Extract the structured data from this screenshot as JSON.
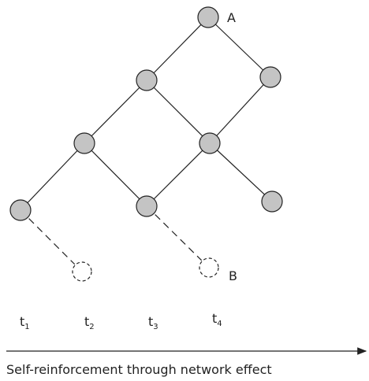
{
  "nodes": [
    {
      "label": "A"
    },
    {
      "label": "B"
    }
  ],
  "time_labels": [
    {
      "text": "t",
      "sub": "1"
    },
    {
      "text": "t",
      "sub": "2"
    },
    {
      "text": "t",
      "sub": "3"
    },
    {
      "text": "t",
      "sub": "4"
    }
  ],
  "caption": "Self-reinforcement through network effect"
}
